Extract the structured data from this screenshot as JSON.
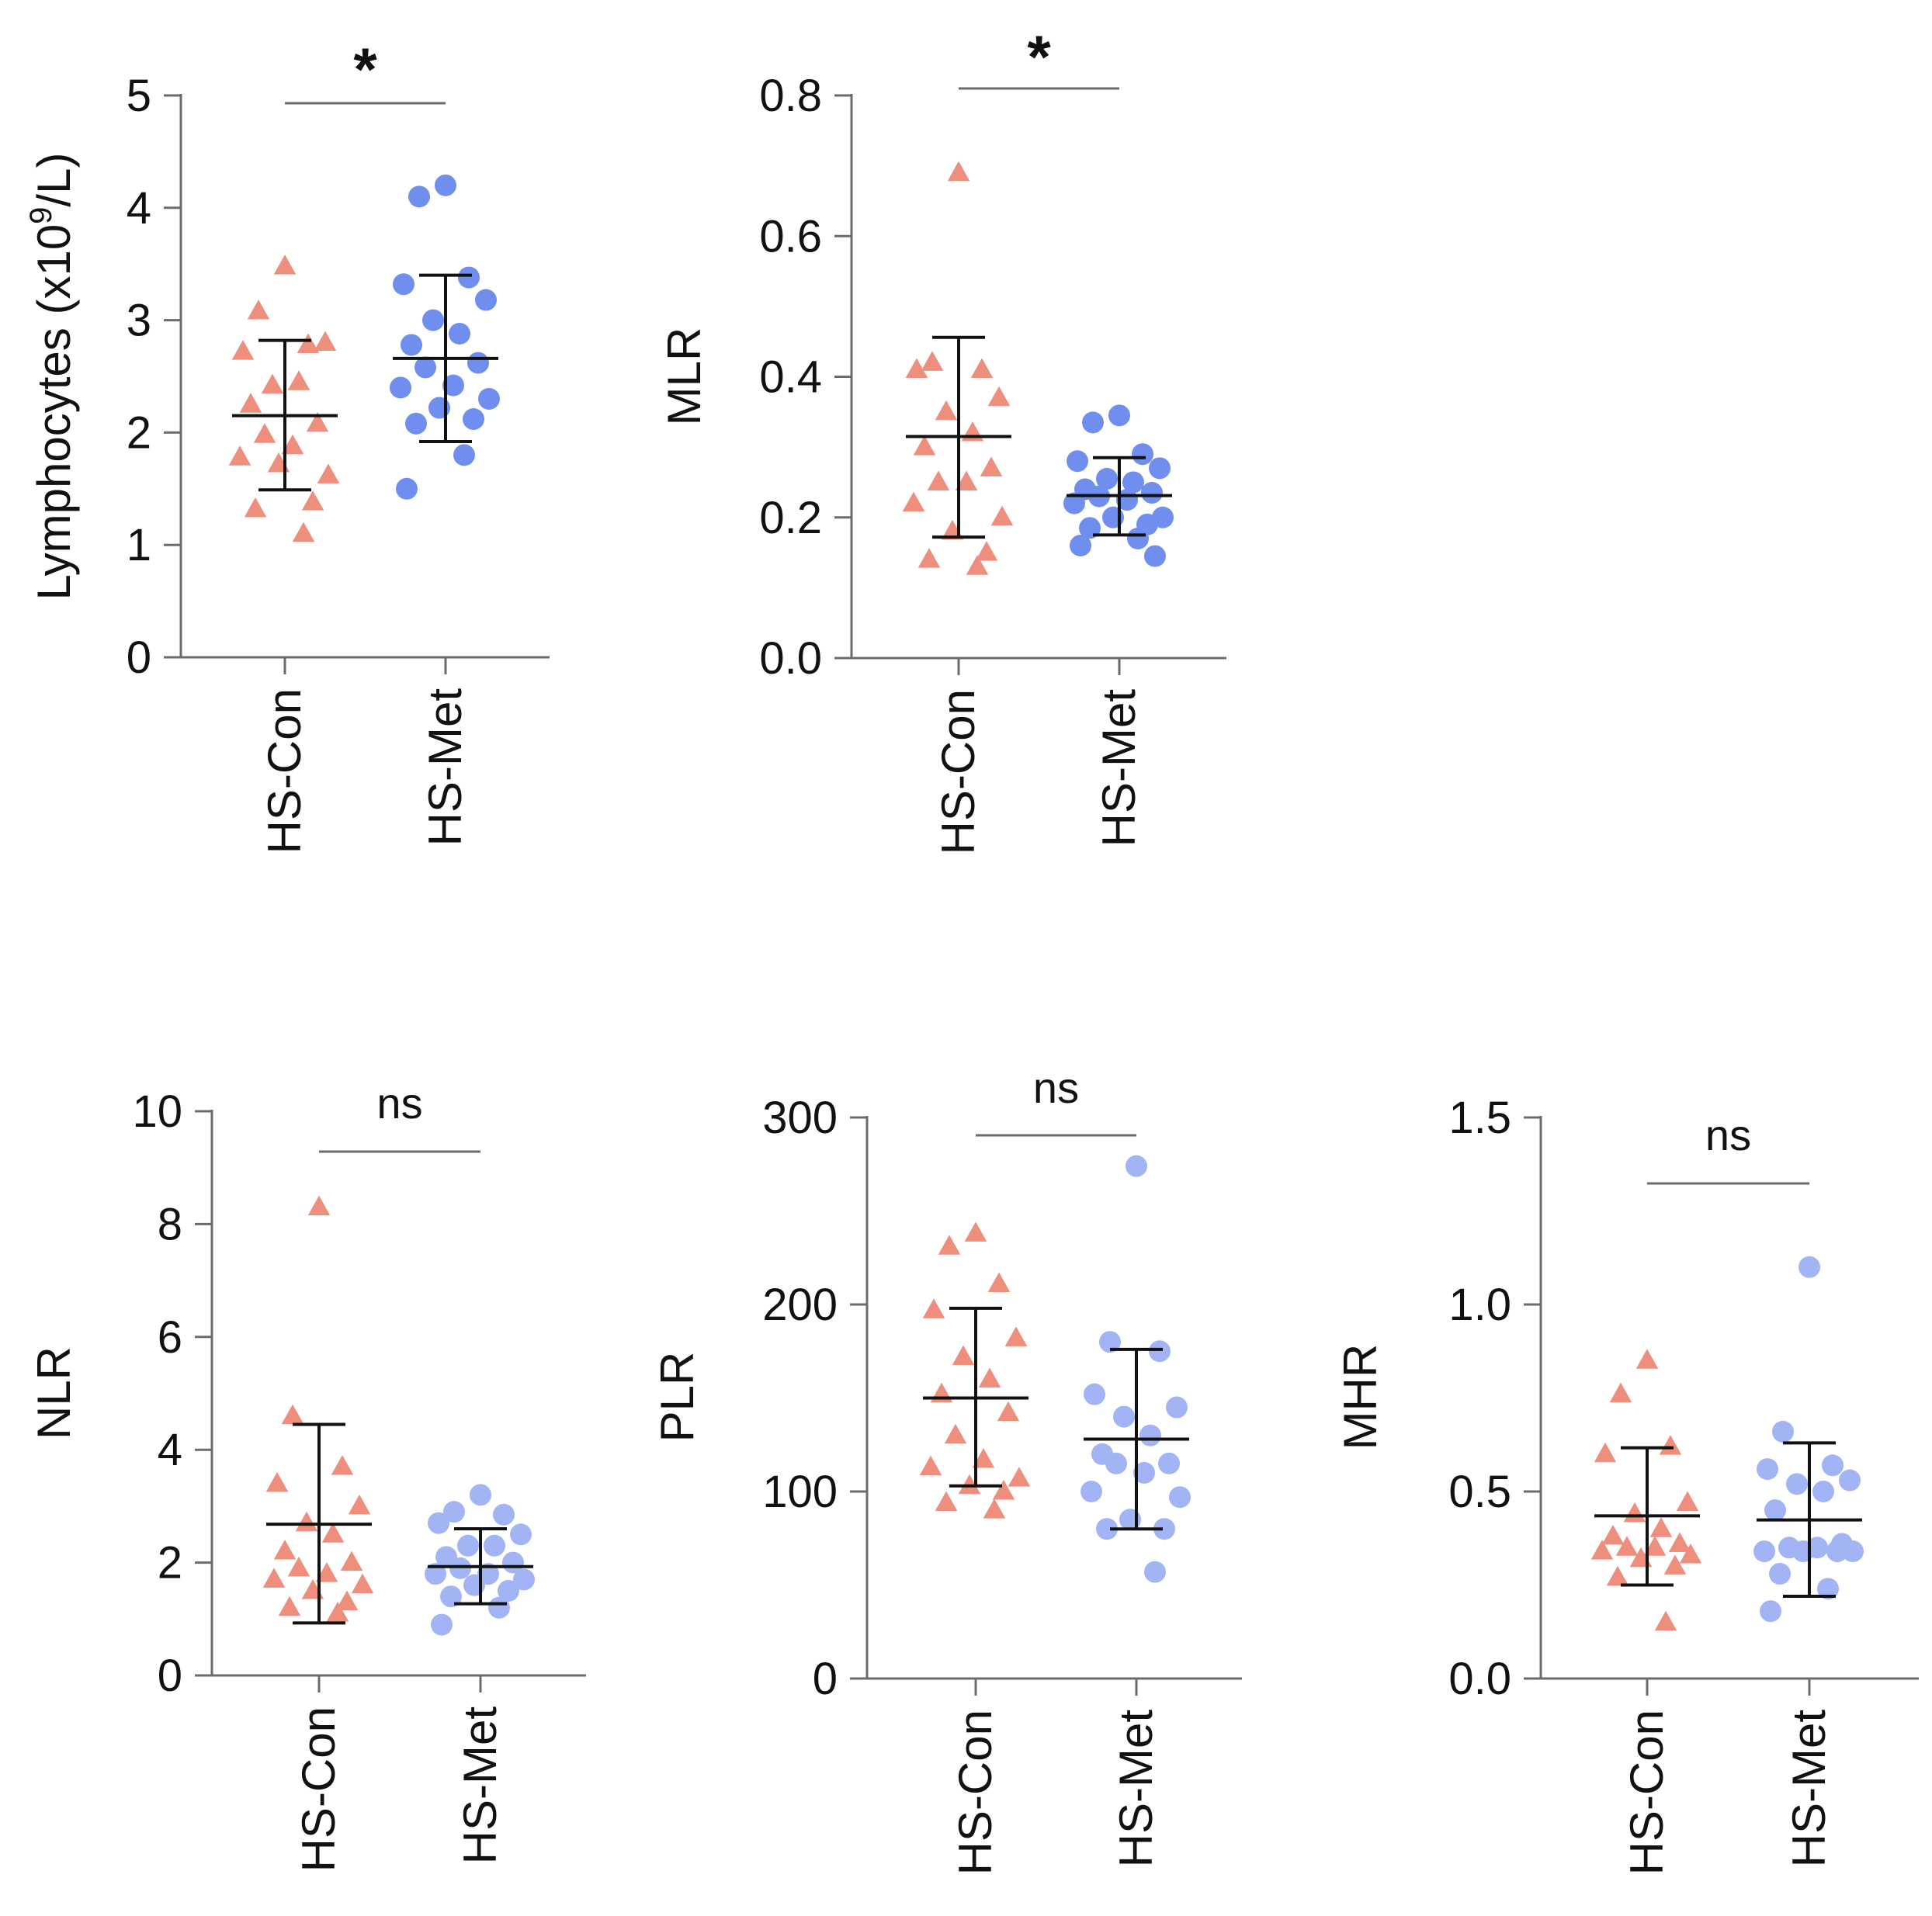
{
  "chart_data": [
    {
      "type": "scatter",
      "ylabel": "Lymphocytes (x10^9/L)",
      "ylabel_base": "Lymphocytes (x10",
      "ylabel_sup": "9",
      "ylabel_tail": "/L)",
      "ylim": [
        0,
        5
      ],
      "yticks": [
        0,
        1,
        2,
        3,
        4,
        5
      ],
      "categories": [
        "HS-Con",
        "HS-Met"
      ],
      "significance": "*",
      "series": [
        {
          "category": "HS-Con",
          "marker": "triangle",
          "color": "#EE8E7C",
          "values": [
            3.48,
            3.08,
            2.78,
            2.72,
            2.8,
            2.42,
            2.45,
            2.25,
            2.08,
            1.98,
            1.88,
            1.78,
            1.62,
            1.72,
            1.38,
            1.32,
            1.1
          ],
          "mean": 2.15,
          "sd_low": 1.49,
          "sd_high": 2.82
        },
        {
          "category": "HS-Met",
          "marker": "circle",
          "color": "#6F8EEE",
          "values": [
            4.2,
            4.1,
            3.38,
            3.32,
            3.18,
            3.0,
            2.88,
            2.78,
            2.62,
            2.58,
            2.42,
            2.4,
            2.3,
            2.22,
            2.12,
            2.08,
            1.8,
            1.5
          ],
          "mean": 2.66,
          "sd_low": 1.92,
          "sd_high": 3.4
        }
      ]
    },
    {
      "type": "scatter",
      "ylabel": "MLR",
      "ylim": [
        0,
        0.8
      ],
      "yticks": [
        "0.0",
        "0.2",
        "0.4",
        "0.6",
        "0.8"
      ],
      "categories": [
        "HS-Con",
        "HS-Met"
      ],
      "significance": "*",
      "series": [
        {
          "category": "HS-Con",
          "marker": "triangle",
          "color": "#EE8E7C",
          "values": [
            0.69,
            0.42,
            0.41,
            0.41,
            0.37,
            0.35,
            0.32,
            0.3,
            0.27,
            0.25,
            0.25,
            0.22,
            0.2,
            0.18,
            0.15,
            0.14,
            0.13
          ],
          "mean": 0.315,
          "sd_low": 0.172,
          "sd_high": 0.456
        },
        {
          "category": "HS-Met",
          "marker": "circle",
          "color": "#6F8EEE",
          "values": [
            0.345,
            0.335,
            0.29,
            0.28,
            0.27,
            0.255,
            0.25,
            0.24,
            0.235,
            0.23,
            0.225,
            0.22,
            0.2,
            0.2,
            0.19,
            0.185,
            0.17,
            0.16,
            0.145
          ],
          "mean": 0.231,
          "sd_low": 0.175,
          "sd_high": 0.285
        }
      ]
    },
    {
      "type": "scatter",
      "ylabel": "NLR",
      "ylim": [
        0,
        10
      ],
      "yticks": [
        0,
        2,
        4,
        6,
        8,
        10
      ],
      "categories": [
        "HS-Con",
        "HS-Met"
      ],
      "significance": "ns",
      "series": [
        {
          "category": "HS-Con",
          "marker": "triangle",
          "color": "#EE8E7C",
          "values": [
            8.3,
            4.6,
            3.7,
            3.4,
            3.0,
            2.7,
            2.5,
            2.2,
            2.0,
            1.9,
            1.8,
            1.7,
            1.6,
            1.5,
            1.3,
            1.2,
            1.1
          ],
          "mean": 2.68,
          "sd_low": 0.93,
          "sd_high": 4.45
        },
        {
          "category": "HS-Met",
          "marker": "circle",
          "color": "#A2B4F3",
          "values": [
            3.2,
            2.9,
            2.85,
            2.7,
            2.5,
            2.3,
            2.3,
            2.1,
            2.0,
            1.9,
            1.8,
            1.8,
            1.7,
            1.6,
            1.5,
            1.4,
            1.2,
            0.9
          ],
          "mean": 1.93,
          "sd_low": 1.27,
          "sd_high": 2.6
        }
      ]
    },
    {
      "type": "scatter",
      "ylabel": "PLR",
      "ylim": [
        0,
        300
      ],
      "yticks": [
        0,
        100,
        200,
        300
      ],
      "categories": [
        "HS-Con",
        "HS-Met"
      ],
      "significance": "ns",
      "series": [
        {
          "category": "HS-Con",
          "marker": "triangle",
          "color": "#EE8E7C",
          "values": [
            238,
            231,
            211,
            197,
            182,
            172,
            160,
            152,
            142,
            130,
            117,
            113,
            107,
            103,
            100,
            94,
            90
          ],
          "mean": 150,
          "sd_low": 103,
          "sd_high": 198
        },
        {
          "category": "HS-Met",
          "marker": "circle",
          "color": "#A2B4F3",
          "values": [
            274,
            180,
            175,
            152,
            145,
            140,
            130,
            120,
            115,
            115,
            110,
            100,
            97,
            85,
            80,
            80,
            57
          ],
          "mean": 128,
          "sd_low": 80,
          "sd_high": 176
        }
      ]
    },
    {
      "type": "scatter",
      "ylabel": "MHR",
      "ylim": [
        0,
        1.5
      ],
      "yticks": [
        "0.0",
        "0.5",
        "1.0",
        "1.5"
      ],
      "categories": [
        "HS-Con",
        "HS-Met"
      ],
      "significance": "ns",
      "series": [
        {
          "category": "HS-Con",
          "marker": "triangle",
          "color": "#EE8E7C",
          "values": [
            0.85,
            0.76,
            0.62,
            0.6,
            0.47,
            0.44,
            0.4,
            0.38,
            0.36,
            0.35,
            0.35,
            0.34,
            0.33,
            0.32,
            0.3,
            0.27,
            0.15
          ],
          "mean": 0.435,
          "sd_low": 0.25,
          "sd_high": 0.617
        },
        {
          "category": "HS-Met",
          "marker": "circle",
          "color": "#A2B4F3",
          "values": [
            1.1,
            0.66,
            0.57,
            0.56,
            0.53,
            0.52,
            0.5,
            0.45,
            0.36,
            0.35,
            0.35,
            0.34,
            0.34,
            0.34,
            0.34,
            0.28,
            0.24,
            0.18
          ],
          "mean": 0.424,
          "sd_low": 0.22,
          "sd_high": 0.63
        }
      ]
    }
  ]
}
